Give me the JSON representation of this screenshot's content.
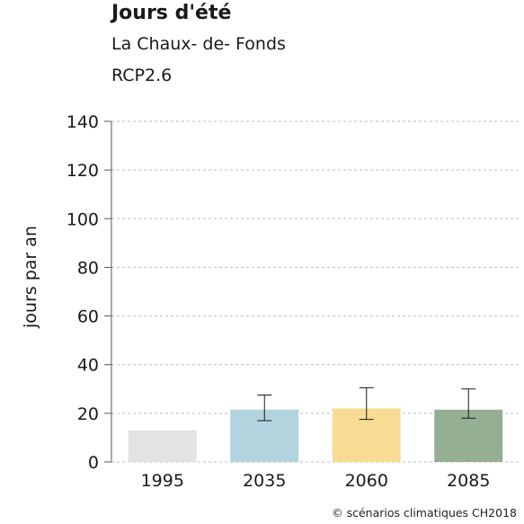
{
  "header": {
    "title": "Jours d'été",
    "subtitle": "La Chaux- de- Fonds",
    "scenario": "RCP2.6"
  },
  "footer": {
    "copyright": "© scénarios climatiques CH2018"
  },
  "chart_data": {
    "type": "bar",
    "title": "Jours d'été",
    "subtitle": "La Chaux- de- Fonds",
    "xlabel": "",
    "ylabel": "jours par an",
    "ylim": [
      0,
      140
    ],
    "yticks": [
      0,
      20,
      40,
      60,
      80,
      100,
      120,
      140
    ],
    "grid": true,
    "categories": [
      "1995",
      "2035",
      "2060",
      "2085"
    ],
    "values": [
      13,
      21.5,
      22,
      21.5
    ],
    "error_low": [
      null,
      17,
      17.5,
      18
    ],
    "error_high": [
      null,
      27.5,
      30.5,
      30
    ],
    "colors": [
      "#e3e3e3",
      "#b2d4df",
      "#f9dc93",
      "#94af94"
    ]
  }
}
